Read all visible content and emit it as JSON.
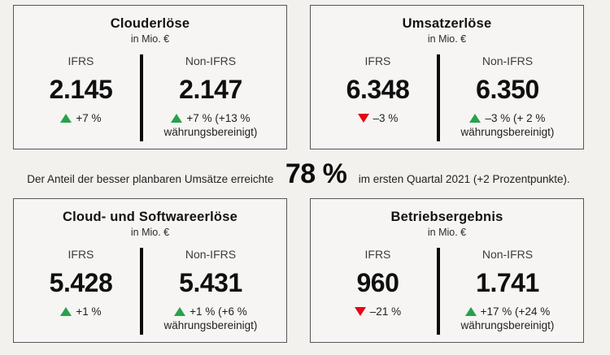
{
  "colors": {
    "green": "#27a24c",
    "red": "#e30613",
    "page_background": "#f2f1ee",
    "card_border": "#55565a"
  },
  "highlight": {
    "prefix": "Der Anteil der besser planbaren Umsätze erreichte",
    "value": "78 %",
    "suffix": "im ersten Quartal 2021 (+2 Prozentpunkte)."
  },
  "cards": [
    {
      "title": "Clouderlöse",
      "unit": "in Mio. €",
      "ifrs": {
        "label": "IFRS",
        "value": "2.145",
        "trend": "up",
        "change": "+7 %"
      },
      "non_ifrs": {
        "label": "Non-IFRS",
        "value": "2.147",
        "trend": "up",
        "change": "+7 % (+13 % währungsbereinigt)"
      }
    },
    {
      "title": "Umsatzerlöse",
      "unit": "in Mio. €",
      "ifrs": {
        "label": "IFRS",
        "value": "6.348",
        "trend": "down",
        "change": "–3 %"
      },
      "non_ifrs": {
        "label": "Non-IFRS",
        "value": "6.350",
        "trend": "up",
        "change": "–3 % (+ 2 % währungsbereinigt)"
      }
    },
    {
      "title": "Cloud- und Softwareerlöse",
      "unit": "in Mio. €",
      "ifrs": {
        "label": "IFRS",
        "value": "5.428",
        "trend": "up",
        "change": "+1 %"
      },
      "non_ifrs": {
        "label": "Non-IFRS",
        "value": "5.431",
        "trend": "up",
        "change": "+1 % (+6 % währungsbereinigt)"
      }
    },
    {
      "title": "Betriebsergebnis",
      "unit": "in Mio. €",
      "ifrs": {
        "label": "IFRS",
        "value": "960",
        "trend": "down",
        "change": "–21 %"
      },
      "non_ifrs": {
        "label": "Non-IFRS",
        "value": "1.741",
        "trend": "up",
        "change": "+17 % (+24 % währungsbereinigt)"
      }
    }
  ],
  "chart_data": {
    "type": "table",
    "unit": "in Mio. €",
    "columns": [
      "IFRS",
      "Non-IFRS"
    ],
    "metrics": [
      {
        "name": "Clouderlöse",
        "ifrs_value": 2145,
        "ifrs_change_pct": 7,
        "non_ifrs_value": 2147,
        "non_ifrs_change_pct": 7,
        "non_ifrs_currency_adjusted_pct": 13
      },
      {
        "name": "Umsatzerlöse",
        "ifrs_value": 6348,
        "ifrs_change_pct": -3,
        "non_ifrs_value": 6350,
        "non_ifrs_change_pct": -3,
        "non_ifrs_currency_adjusted_pct": 2
      },
      {
        "name": "Cloud- und Softwareerlöse",
        "ifrs_value": 5428,
        "ifrs_change_pct": 1,
        "non_ifrs_value": 5431,
        "non_ifrs_change_pct": 1,
        "non_ifrs_currency_adjusted_pct": 6
      },
      {
        "name": "Betriebsergebnis",
        "ifrs_value": 960,
        "ifrs_change_pct": -21,
        "non_ifrs_value": 1741,
        "non_ifrs_change_pct": 17,
        "non_ifrs_currency_adjusted_pct": 24
      }
    ],
    "highlight": {
      "besser_planbare_umsaetze_anteil_pct": 78,
      "periode": "erstes Quartal 2021",
      "veraenderung_prozentpunkte": 2
    }
  }
}
